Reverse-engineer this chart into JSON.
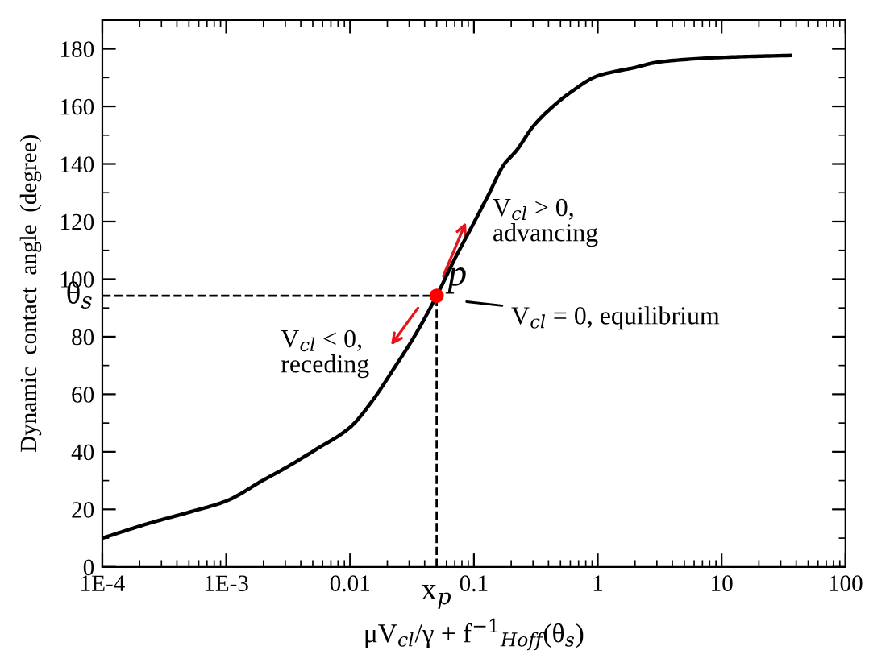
{
  "chart_data": {
    "type": "line",
    "xlabel": "μV$_{cl}$/γ + f$^{−1}$$_{Hoff}$(θ$_{s}$)",
    "ylabel": "Dynamic  contact  angle  (degree)",
    "log": "x",
    "series": [
      {
        "color": "#000000",
        "x": [
          0.0001,
          0.00024,
          0.0005,
          0.001,
          0.002,
          0.0029,
          0.0053,
          0.01,
          0.015,
          0.0224,
          0.034,
          0.05,
          0.07,
          0.1,
          0.13,
          0.175,
          0.22,
          0.3,
          0.41,
          0.6,
          1,
          2,
          3.1,
          10,
          35.6
        ],
        "values": [
          10,
          15.2,
          19,
          22.9,
          30.2,
          34,
          40.8,
          48.5,
          57.5,
          68.7,
          81,
          94.2,
          107,
          119.6,
          129,
          139.8,
          144.6,
          153,
          159,
          164.8,
          170.6,
          173.5,
          175.4,
          177,
          177.7
        ]
      },
      {
        "type": "scatter",
        "color": "#ff0000",
        "x": [
          0.05
        ],
        "values": [
          94.2
        ]
      }
    ],
    "line_style": "solid",
    "xlim": [
      0.0001,
      100
    ],
    "xticks": [
      {
        "value": 0.0001,
        "label": "1E-4"
      },
      {
        "value": 0.001,
        "label": "1E-3"
      },
      0.01,
      0.1,
      1,
      10,
      100
    ],
    "ylim": [
      0,
      190
    ],
    "yticks": [
      0,
      20,
      40,
      60,
      80,
      100,
      120,
      140,
      160,
      180
    ],
    "ref_lines": [
      {
        "axis": "y",
        "value": 94.2,
        "label": "θ$_{s}$",
        "color": "#000000",
        "line_style": "dashed"
      },
      {
        "axis": "x",
        "value": 0.05,
        "label": "x$_{p}$",
        "color": "#000000",
        "line_style": "dashed"
      }
    ],
    "annotations": [
      {
        "text": "p",
        "x": 0.05,
        "y": 94.2
      },
      "V$_{cl}$ = 0, equilibrium",
      "V$_{cl}$ > 0,\nadvancing",
      "V$_{cl}$ < 0,\nreceding"
    ],
    "grid": false,
    "legend": false
  }
}
